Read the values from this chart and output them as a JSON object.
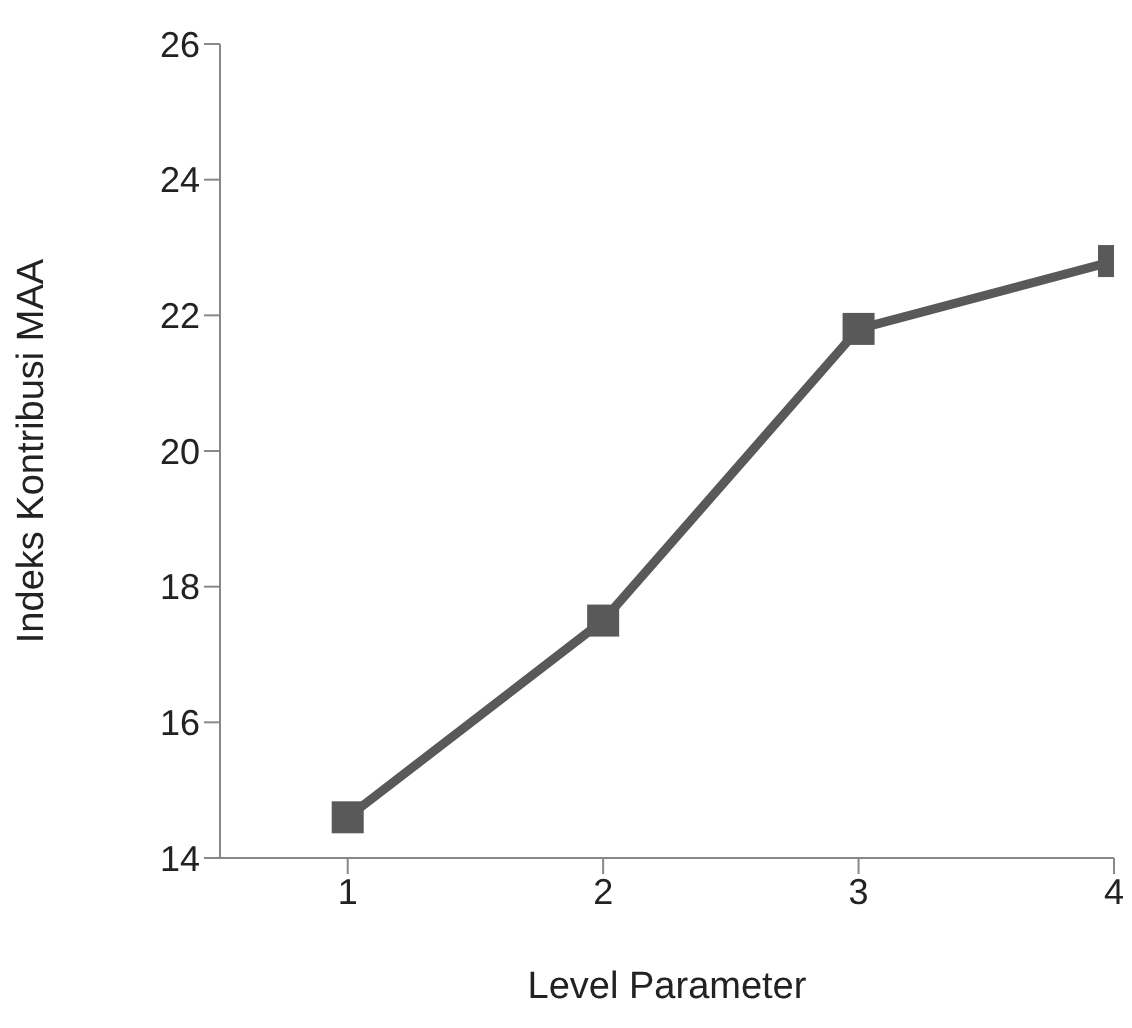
{
  "chart_data": {
    "type": "line",
    "xlabel": "Level Parameter",
    "ylabel": "Indeks Kontribusi MAA",
    "x": [
      1,
      2,
      3,
      4
    ],
    "series": [
      {
        "color": "#595959",
        "values": [
          14.6,
          17.5,
          21.8,
          22.8
        ]
      }
    ],
    "xlim": [
      0.5,
      4
    ],
    "xticks": [
      1,
      2,
      3,
      4
    ],
    "ylim": [
      14,
      26
    ],
    "yticks": [
      14,
      16,
      18,
      20,
      22,
      24,
      26
    ],
    "grid": false,
    "legend": false,
    "marker": "square",
    "line_style": "solid"
  }
}
